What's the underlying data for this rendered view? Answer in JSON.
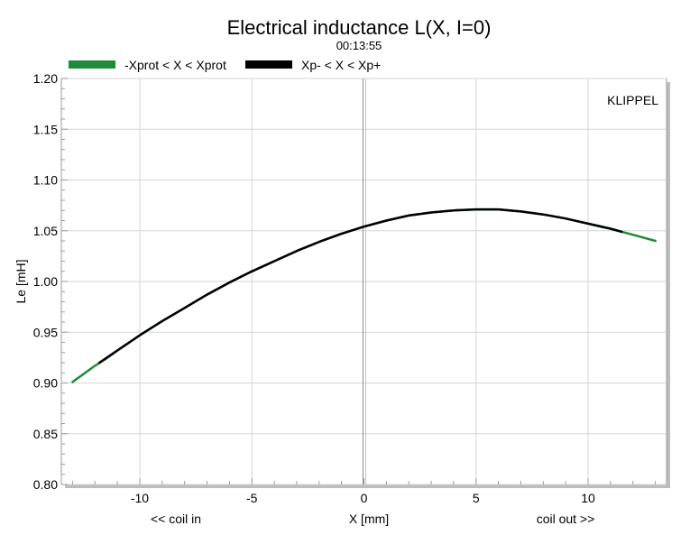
{
  "chart_data": {
    "type": "line",
    "title": "Electrical inductance L(X, I=0)",
    "subtitle": "00:13:55",
    "xlabel": "X [mm]",
    "xlabel_left": "<< coil in",
    "xlabel_right": "coil out >>",
    "ylabel": "Le [mH]",
    "watermark": "KLIPPEL",
    "xlim": [
      -13.5,
      13.5
    ],
    "ylim": [
      0.8,
      1.2
    ],
    "x_ticks": [
      -10,
      -5,
      0,
      5,
      10
    ],
    "y_ticks": [
      0.8,
      0.85,
      0.9,
      0.95,
      1.0,
      1.05,
      1.1,
      1.15,
      1.2
    ],
    "x_tick_labels": [
      "-10",
      "-5",
      "0",
      "5",
      "10"
    ],
    "y_tick_labels": [
      "0.80",
      "0.85",
      "0.90",
      "0.95",
      "1.00",
      "1.05",
      "1.10",
      "1.15",
      "1.20"
    ],
    "grid": true,
    "legend_position": "top-left",
    "colors": {
      "green": "#1e8a3c",
      "black": "#000000",
      "grid": "#d6d6d6",
      "zero_line": "#8c8c8c"
    },
    "series": [
      {
        "name": "-Xprot < X < Xprot",
        "color": "#1e8a3c",
        "x": [
          -13.0,
          -12.5,
          -12.0,
          -11.5,
          -11.0,
          -10.0,
          -9.0,
          -8.0,
          -7.0,
          -6.0,
          -5.0,
          -4.0,
          -3.0,
          -2.0,
          -1.0,
          0.0,
          1.0,
          2.0,
          3.0,
          4.0,
          5.0,
          6.0,
          7.0,
          8.0,
          9.0,
          10.0,
          11.0,
          11.5,
          12.0,
          12.5,
          13.0
        ],
        "y": [
          0.901,
          0.909,
          0.917,
          0.924,
          0.932,
          0.947,
          0.961,
          0.974,
          0.987,
          0.999,
          1.01,
          1.02,
          1.03,
          1.039,
          1.047,
          1.054,
          1.06,
          1.065,
          1.068,
          1.07,
          1.071,
          1.071,
          1.069,
          1.066,
          1.062,
          1.057,
          1.052,
          1.049,
          1.046,
          1.043,
          1.04
        ]
      },
      {
        "name": "Xp- < X < Xp+",
        "color": "#000000",
        "x": [
          -11.8,
          -11.0,
          -10.0,
          -9.0,
          -8.0,
          -7.0,
          -6.0,
          -5.0,
          -4.0,
          -3.0,
          -2.0,
          -1.0,
          0.0,
          1.0,
          2.0,
          3.0,
          4.0,
          5.0,
          6.0,
          7.0,
          8.0,
          9.0,
          10.0,
          11.0,
          11.5
        ],
        "y": [
          0.92,
          0.932,
          0.947,
          0.961,
          0.974,
          0.987,
          0.999,
          1.01,
          1.02,
          1.03,
          1.039,
          1.047,
          1.054,
          1.06,
          1.065,
          1.068,
          1.07,
          1.071,
          1.071,
          1.069,
          1.066,
          1.062,
          1.057,
          1.052,
          1.049
        ]
      }
    ]
  }
}
